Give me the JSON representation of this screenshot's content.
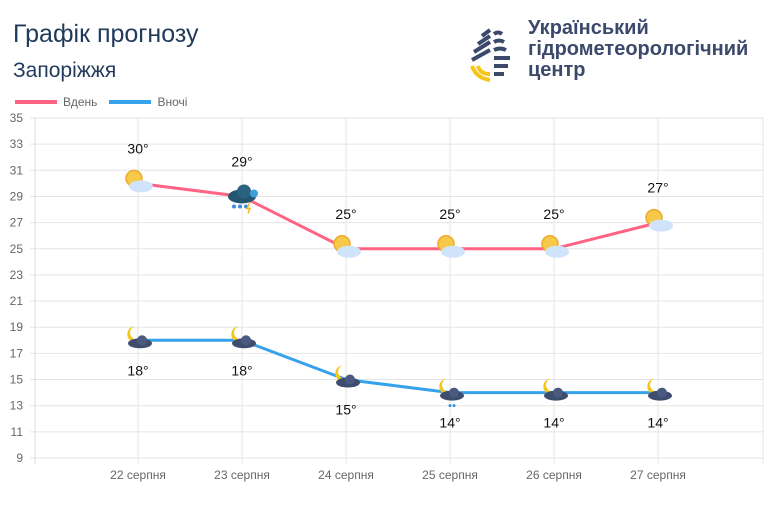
{
  "header": {
    "title": "Графік прогнозу",
    "city": "Запоріжжя"
  },
  "org": {
    "lines": [
      "Український",
      "гідрометеорологічний",
      "центр"
    ]
  },
  "chart_data": {
    "type": "line",
    "categories": [
      "22 серпня",
      "23 серпня",
      "24 серпня",
      "25 серпня",
      "26 серпня",
      "27 серпня"
    ],
    "ylim": [
      9,
      35
    ],
    "yticks": [
      35,
      33,
      31,
      29,
      27,
      25,
      23,
      21,
      19,
      17,
      15,
      13,
      11,
      9
    ],
    "legend_position": "top-left",
    "series": [
      {
        "name": "Вдень",
        "color": "#ff6384",
        "values": [
          30,
          29,
          25,
          25,
          25,
          27
        ],
        "labels": [
          "30°",
          "29°",
          "25°",
          "25°",
          "25°",
          "27°"
        ],
        "icons": [
          "sun-cloud",
          "thunderstorm-rain",
          "sun-cloud",
          "sun-cloud",
          "sun-cloud",
          "sun-cloud"
        ]
      },
      {
        "name": "Вночі",
        "color": "#36a2eb",
        "values": [
          18,
          18,
          15,
          14,
          14,
          14
        ],
        "labels": [
          "18°",
          "18°",
          "15°",
          "14°",
          "14°",
          "14°"
        ],
        "icons": [
          "moon-cloud",
          "moon-cloud",
          "moon-cloud",
          "moon-cloud-rain",
          "moon-cloud",
          "moon-cloud"
        ]
      }
    ]
  }
}
